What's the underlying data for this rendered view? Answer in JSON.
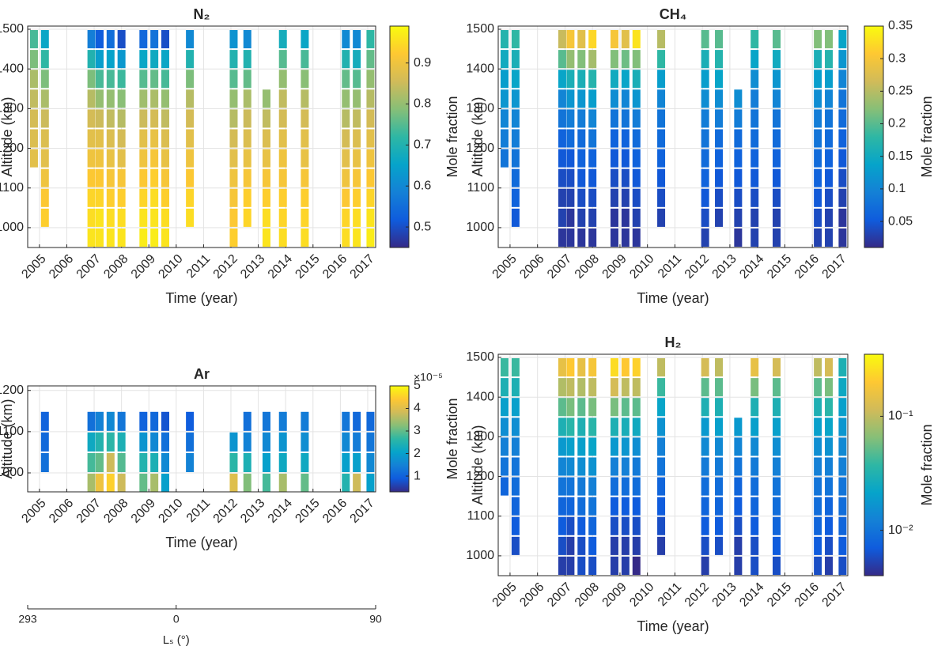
{
  "chart_data": [
    {
      "type": "profiles",
      "title": "N₂",
      "xlabel": "Time (year)",
      "ylabel": "Altitude (km)",
      "colorbar_label": "Mole fraction",
      "grid": true,
      "xlim": [
        2004.57,
        2017.29
      ],
      "xticks": [
        2005,
        2006,
        2007,
        2008,
        2009,
        2010,
        2011,
        2012,
        2013,
        2014,
        2015,
        2016,
        2017
      ],
      "ylim": [
        950,
        1508
      ],
      "yticks": [
        1000,
        1100,
        1200,
        1300,
        1400,
        1500
      ],
      "clim": [
        0.45,
        0.99
      ],
      "cticks": [
        0.5,
        0.6,
        0.7,
        0.8,
        0.9
      ],
      "log": false,
      "colormap": [
        "#352a87",
        "#0f5cdd",
        "#1481d6",
        "#06a4ca",
        "#2eb7a4",
        "#87bf77",
        "#d1bb59",
        "#fec832",
        "#f9fb0e"
      ],
      "x": [
        2004.8,
        2005.2,
        2006.9,
        2007.2,
        2007.6,
        2008.0,
        2008.8,
        2009.2,
        2009.6,
        2010.5,
        2012.1,
        2012.6,
        2013.3,
        2013.9,
        2014.7,
        2016.2,
        2016.6,
        2017.1
      ],
      "altitudes": [
        975,
        1025,
        1075,
        1125,
        1175,
        1225,
        1275,
        1325,
        1375,
        1425,
        1475
      ],
      "values": [
        [
          null,
          null,
          null,
          null,
          0.88,
          0.87,
          0.86,
          0.84,
          0.82,
          0.78,
          0.74
        ],
        [
          null,
          0.93,
          0.92,
          0.9,
          0.88,
          0.87,
          0.85,
          0.82,
          0.78,
          0.72,
          0.66
        ],
        [
          0.96,
          0.95,
          0.94,
          0.92,
          0.9,
          0.88,
          0.86,
          0.83,
          0.78,
          0.7,
          0.58
        ],
        [
          0.96,
          0.96,
          0.94,
          0.92,
          0.9,
          0.88,
          0.85,
          0.8,
          0.74,
          0.64,
          0.52
        ],
        [
          0.96,
          0.95,
          0.93,
          0.91,
          0.89,
          0.87,
          0.84,
          0.8,
          0.74,
          0.65,
          0.55
        ],
        [
          0.96,
          0.95,
          0.93,
          0.91,
          0.88,
          0.86,
          0.83,
          0.79,
          0.73,
          0.63,
          0.5
        ],
        [
          0.97,
          0.96,
          0.94,
          0.92,
          0.9,
          0.88,
          0.85,
          0.81,
          0.75,
          0.66,
          0.54
        ],
        [
          0.97,
          0.96,
          0.95,
          0.93,
          0.91,
          0.89,
          0.86,
          0.82,
          0.76,
          0.67,
          0.56
        ],
        [
          0.96,
          0.95,
          0.93,
          0.91,
          0.89,
          0.87,
          0.84,
          0.8,
          0.74,
          0.66,
          0.5
        ],
        [
          null,
          0.95,
          0.94,
          0.92,
          0.9,
          0.88,
          0.86,
          0.83,
          0.78,
          0.7,
          0.6
        ],
        [
          0.93,
          0.92,
          0.91,
          0.9,
          0.88,
          0.86,
          0.83,
          0.8,
          0.75,
          0.7,
          0.62
        ],
        [
          null,
          0.94,
          0.93,
          0.91,
          0.89,
          0.87,
          0.85,
          0.82,
          0.76,
          0.7,
          0.6
        ],
        [
          0.96,
          0.95,
          0.93,
          0.91,
          0.89,
          0.87,
          0.84,
          0.8,
          null,
          null,
          null
        ],
        [
          0.95,
          0.94,
          0.93,
          0.91,
          0.9,
          0.88,
          0.86,
          0.84,
          0.8,
          0.75,
          0.68
        ],
        [
          0.95,
          0.94,
          0.93,
          0.91,
          0.89,
          0.88,
          0.86,
          0.83,
          0.79,
          0.74,
          0.66
        ],
        [
          0.95,
          0.94,
          0.92,
          0.9,
          0.88,
          0.86,
          0.83,
          0.8,
          0.76,
          0.7,
          0.6
        ],
        [
          0.96,
          0.95,
          0.93,
          0.91,
          0.89,
          0.87,
          0.84,
          0.8,
          0.75,
          0.68,
          0.6
        ],
        [
          0.97,
          0.96,
          0.94,
          0.92,
          0.9,
          0.88,
          0.86,
          0.83,
          0.8,
          0.76,
          0.72
        ]
      ]
    },
    {
      "type": "profiles",
      "title": "CH₄",
      "xlabel": "Time (year)",
      "ylabel": "Altitude (km)",
      "colorbar_label": "Mole fraction",
      "grid": true,
      "xlim": [
        2004.57,
        2017.29
      ],
      "xticks": [
        2005,
        2006,
        2007,
        2008,
        2009,
        2010,
        2011,
        2012,
        2013,
        2014,
        2015,
        2016,
        2017
      ],
      "ylim": [
        950,
        1508
      ],
      "yticks": [
        1000,
        1100,
        1200,
        1300,
        1400,
        1500
      ],
      "clim": [
        0.01,
        0.35
      ],
      "cticks": [
        0.05,
        0.1,
        0.15,
        0.2,
        0.25,
        0.3,
        0.35
      ],
      "log": false,
      "colormap": [
        "#352a87",
        "#0f5cdd",
        "#1481d6",
        "#06a4ca",
        "#2eb7a4",
        "#87bf77",
        "#d1bb59",
        "#fec832",
        "#f9fb0e"
      ],
      "x": [
        2004.8,
        2005.2,
        2006.9,
        2007.2,
        2007.6,
        2008.0,
        2008.8,
        2009.2,
        2009.6,
        2010.5,
        2012.1,
        2012.6,
        2013.3,
        2013.9,
        2014.7,
        2016.2,
        2016.6,
        2017.1
      ],
      "altitudes": [
        975,
        1025,
        1075,
        1125,
        1175,
        1225,
        1275,
        1325,
        1375,
        1425,
        1475
      ],
      "values": [
        [
          null,
          null,
          null,
          null,
          0.08,
          0.09,
          0.1,
          0.12,
          0.13,
          0.15,
          0.17
        ],
        [
          null,
          0.05,
          0.06,
          0.07,
          0.08,
          0.09,
          0.1,
          0.12,
          0.14,
          0.16,
          0.18
        ],
        [
          0.02,
          0.03,
          0.03,
          0.04,
          0.05,
          0.06,
          0.08,
          0.1,
          0.14,
          0.2,
          0.26
        ],
        [
          0.02,
          0.02,
          0.03,
          0.04,
          0.05,
          0.07,
          0.09,
          0.12,
          0.16,
          0.23,
          0.3
        ],
        [
          0.02,
          0.03,
          0.04,
          0.05,
          0.06,
          0.07,
          0.09,
          0.12,
          0.16,
          0.22,
          0.28
        ],
        [
          0.02,
          0.03,
          0.04,
          0.05,
          0.06,
          0.08,
          0.1,
          0.13,
          0.17,
          0.24,
          0.32
        ],
        [
          0.02,
          0.02,
          0.03,
          0.04,
          0.05,
          0.06,
          0.08,
          0.11,
          0.15,
          0.22,
          0.3
        ],
        [
          0.02,
          0.02,
          0.03,
          0.04,
          0.05,
          0.06,
          0.08,
          0.1,
          0.14,
          0.21,
          0.28
        ],
        [
          0.02,
          0.03,
          0.04,
          0.05,
          0.06,
          0.07,
          0.09,
          0.12,
          0.16,
          0.22,
          0.33
        ],
        [
          null,
          0.03,
          0.04,
          0.05,
          0.06,
          0.07,
          0.08,
          0.1,
          0.13,
          0.18,
          0.25
        ],
        [
          0.03,
          0.04,
          0.05,
          0.06,
          0.07,
          0.08,
          0.09,
          0.11,
          0.13,
          0.16,
          0.2
        ],
        [
          null,
          0.03,
          0.04,
          0.05,
          0.06,
          0.07,
          0.09,
          0.11,
          0.14,
          0.17,
          0.2
        ],
        [
          0.02,
          0.03,
          0.04,
          0.05,
          0.06,
          0.07,
          0.09,
          0.11,
          null,
          null,
          null
        ],
        [
          0.03,
          0.03,
          0.04,
          0.05,
          0.06,
          0.07,
          0.08,
          0.09,
          0.11,
          0.14,
          0.18
        ],
        [
          0.03,
          0.03,
          0.04,
          0.05,
          0.06,
          0.07,
          0.08,
          0.1,
          0.12,
          0.15,
          0.2
        ],
        [
          0.03,
          0.04,
          0.05,
          0.06,
          0.07,
          0.08,
          0.09,
          0.11,
          0.13,
          0.16,
          0.22
        ],
        [
          0.03,
          0.03,
          0.04,
          0.05,
          0.06,
          0.07,
          0.08,
          0.1,
          0.13,
          0.17,
          0.22
        ],
        [
          0.02,
          0.02,
          0.03,
          0.04,
          0.05,
          0.06,
          0.07,
          0.08,
          0.1,
          0.12,
          0.14
        ]
      ]
    },
    {
      "type": "profiles",
      "title": "Ar",
      "xlabel": "Time (year)",
      "ylabel": "Altitude (km)",
      "colorbar_label": "Mole fraction",
      "colorbar_multiplier": "×10⁻⁵",
      "grid": true,
      "xlim": [
        2004.57,
        2017.29
      ],
      "xticks": [
        2005,
        2006,
        2007,
        2008,
        2009,
        2010,
        2011,
        2012,
        2013,
        2014,
        2015,
        2016,
        2017
      ],
      "ylim": [
        954,
        1211
      ],
      "yticks": [
        1000,
        1100,
        1200
      ],
      "clim": [
        0.3,
        5
      ],
      "cticks": [
        1,
        2,
        3,
        4,
        5
      ],
      "log": false,
      "colormap": [
        "#352a87",
        "#0f5cdd",
        "#1481d6",
        "#06a4ca",
        "#2eb7a4",
        "#87bf77",
        "#d1bb59",
        "#fec832",
        "#f9fb0e"
      ],
      "x": [
        2004.8,
        2005.2,
        2006.9,
        2007.2,
        2007.6,
        2008.0,
        2008.8,
        2009.2,
        2009.6,
        2010.5,
        2012.1,
        2012.6,
        2013.3,
        2013.9,
        2014.7,
        2016.2,
        2016.6,
        2017.1
      ],
      "altitudes": [
        975,
        1025,
        1075,
        1125
      ],
      "values": [
        [
          null,
          null,
          null,
          null
        ],
        [
          null,
          1.2,
          1.1,
          1.0
        ],
        [
          3.5,
          2.8,
          2.2,
          1.2
        ],
        [
          4.2,
          3.0,
          2.5,
          1.5
        ],
        [
          4.5,
          3.8,
          2.6,
          1.6
        ],
        [
          3.8,
          2.9,
          2.4,
          1.3
        ],
        [
          3.0,
          2.5,
          1.8,
          1.0
        ],
        [
          3.5,
          2.4,
          1.6,
          1.1
        ],
        [
          2.0,
          1.6,
          1.2,
          0.8
        ],
        [
          null,
          1.5,
          1.2,
          0.9
        ],
        [
          4.0,
          2.6,
          1.8,
          null
        ],
        [
          3.2,
          2.4,
          1.5,
          1.2
        ],
        [
          2.8,
          2.0,
          1.6,
          1.3
        ],
        [
          3.5,
          2.2,
          1.8,
          1.4
        ],
        [
          3.0,
          2.2,
          1.7,
          1.4
        ],
        [
          2.5,
          2.0,
          1.6,
          1.3
        ],
        [
          3.8,
          2.0,
          1.4,
          1.1
        ],
        [
          2.0,
          1.6,
          1.3,
          1.1
        ]
      ]
    },
    {
      "type": "profiles",
      "title": "H₂",
      "xlabel": "Time (year)",
      "ylabel": "Altitude (km)",
      "colorbar_label": "Mole fraction",
      "grid": true,
      "xlim": [
        2004.57,
        2017.29
      ],
      "xticks": [
        2005,
        2006,
        2007,
        2008,
        2009,
        2010,
        2011,
        2012,
        2013,
        2014,
        2015,
        2016,
        2017
      ],
      "ylim": [
        950,
        1508
      ],
      "yticks": [
        1000,
        1100,
        1200,
        1300,
        1400,
        1500
      ],
      "clim": [
        0.004,
        0.35
      ],
      "cticks": [
        {
          "value": 0.01,
          "label": "10⁻²"
        },
        {
          "value": 0.1,
          "label": "10⁻¹"
        }
      ],
      "log": true,
      "colormap": [
        "#352a87",
        "#0f5cdd",
        "#1481d6",
        "#06a4ca",
        "#2eb7a4",
        "#87bf77",
        "#d1bb59",
        "#fec832",
        "#f9fb0e"
      ],
      "x": [
        2004.8,
        2005.2,
        2006.9,
        2007.2,
        2007.6,
        2008.0,
        2008.8,
        2009.2,
        2009.6,
        2010.5,
        2012.1,
        2012.6,
        2013.3,
        2013.9,
        2014.7,
        2016.2,
        2016.6,
        2017.1
      ],
      "altitudes": [
        975,
        1025,
        1075,
        1125,
        1175,
        1225,
        1275,
        1325,
        1375,
        1425,
        1475
      ],
      "values": [
        [
          null,
          null,
          null,
          null,
          0.008,
          0.01,
          0.012,
          0.015,
          0.02,
          0.03,
          0.04
        ],
        [
          null,
          0.006,
          0.007,
          0.008,
          0.009,
          0.01,
          0.012,
          0.015,
          0.02,
          0.03,
          0.04
        ],
        [
          0.005,
          0.006,
          0.007,
          0.008,
          0.01,
          0.013,
          0.018,
          0.03,
          0.05,
          0.09,
          0.15
        ],
        [
          0.005,
          0.005,
          0.006,
          0.008,
          0.01,
          0.014,
          0.02,
          0.035,
          0.06,
          0.1,
          0.2
        ],
        [
          0.006,
          0.006,
          0.007,
          0.009,
          0.011,
          0.015,
          0.02,
          0.03,
          0.05,
          0.09,
          0.15
        ],
        [
          0.006,
          0.007,
          0.008,
          0.01,
          0.012,
          0.016,
          0.022,
          0.035,
          0.06,
          0.1,
          0.18
        ],
        [
          0.005,
          0.005,
          0.006,
          0.007,
          0.009,
          0.012,
          0.018,
          0.03,
          0.06,
          0.12,
          0.25
        ],
        [
          0.005,
          0.005,
          0.006,
          0.007,
          0.009,
          0.012,
          0.017,
          0.028,
          0.05,
          0.1,
          0.2
        ],
        [
          0.004,
          0.005,
          0.006,
          0.007,
          0.009,
          0.011,
          0.015,
          0.025,
          0.05,
          0.1,
          0.22
        ],
        [
          null,
          0.005,
          0.006,
          0.007,
          0.008,
          0.01,
          0.012,
          0.016,
          0.022,
          0.04,
          0.1
        ],
        [
          0.005,
          0.006,
          0.007,
          0.008,
          0.009,
          0.011,
          0.014,
          0.018,
          0.03,
          0.05,
          0.12
        ],
        [
          null,
          0.006,
          0.007,
          0.008,
          0.009,
          0.011,
          0.014,
          0.02,
          0.03,
          0.05,
          0.1
        ],
        [
          0.005,
          0.005,
          0.006,
          0.007,
          0.008,
          0.01,
          0.013,
          0.018,
          null,
          null,
          null
        ],
        [
          0.006,
          0.006,
          0.007,
          0.008,
          0.009,
          0.011,
          0.014,
          0.02,
          0.03,
          0.06,
          0.15
        ],
        [
          0.006,
          0.007,
          0.008,
          0.009,
          0.01,
          0.012,
          0.015,
          0.02,
          0.03,
          0.05,
          0.12
        ],
        [
          0.006,
          0.007,
          0.008,
          0.009,
          0.01,
          0.012,
          0.015,
          0.02,
          0.03,
          0.05,
          0.1
        ],
        [
          0.005,
          0.006,
          0.007,
          0.008,
          0.01,
          0.012,
          0.016,
          0.022,
          0.035,
          0.06,
          0.12
        ],
        [
          0.006,
          0.007,
          0.008,
          0.009,
          0.01,
          0.012,
          0.014,
          0.017,
          0.02,
          0.024,
          0.03
        ]
      ]
    },
    {
      "type": "axis",
      "xlabel": "Lₛ (°)",
      "xlim": [
        -67,
        90
      ],
      "xticks": [
        {
          "value": -67,
          "label": "293"
        },
        0,
        90
      ]
    }
  ]
}
